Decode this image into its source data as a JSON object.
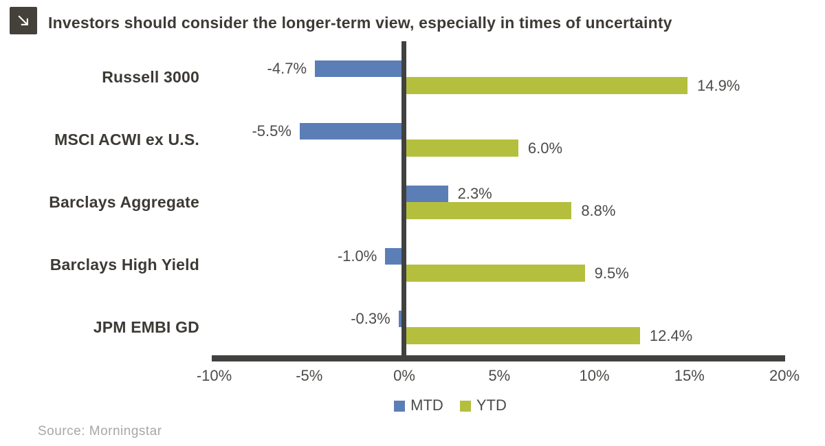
{
  "header": {
    "title": "Investors should consider the longer-term view, especially in times of uncertainty",
    "icon": "arrow-down-right"
  },
  "chart_data": {
    "type": "bar",
    "orientation": "horizontal",
    "title": "Investors should consider the longer-term view, especially in times of uncertainty",
    "categories": [
      "Russell 3000",
      "MSCI ACWI ex U.S.",
      "Barclays Aggregate",
      "Barclays High Yield",
      "JPM EMBI GD"
    ],
    "series": [
      {
        "name": "MTD",
        "color": "#5b7eb7",
        "values": [
          -4.7,
          -5.5,
          2.3,
          -1.0,
          -0.3
        ],
        "labels": [
          "-4.7%",
          "-5.5%",
          "2.3%",
          "-1.0%",
          "-0.3%"
        ]
      },
      {
        "name": "YTD",
        "color": "#b5bf3e",
        "values": [
          14.9,
          6.0,
          8.8,
          9.5,
          12.4
        ],
        "labels": [
          "14.9%",
          "6.0%",
          "8.8%",
          "9.5%",
          "12.4%"
        ]
      }
    ],
    "x_axis": {
      "min": -10,
      "max": 20,
      "tick_values": [
        -10,
        -5,
        0,
        5,
        10,
        15,
        20
      ],
      "tick_labels": [
        "-10%",
        "-5%",
        "0%",
        "5%",
        "10%",
        "15%",
        "20%"
      ]
    },
    "legend_position": "bottom",
    "grid": false,
    "data_labels": true
  },
  "footer": {
    "source": "Source: Morningstar"
  }
}
